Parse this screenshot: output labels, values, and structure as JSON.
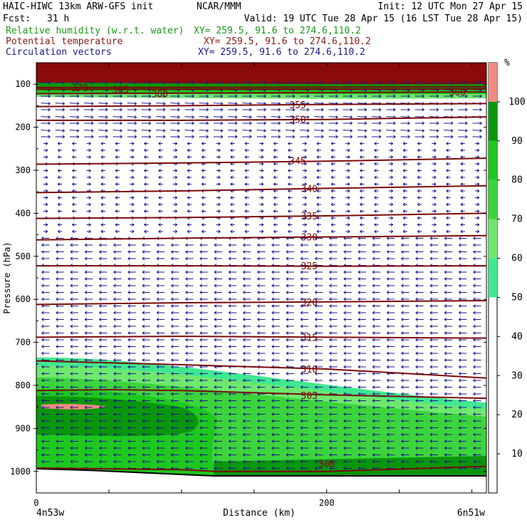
{
  "header": {
    "model_title": "HAIC-HIWC 13km ARW-GFS init",
    "org": "NCAR/MMM",
    "init": "Init: 12 UTC Mon 27 Apr 15",
    "fcst_label": "Fcst:",
    "fcst_value": "31 h",
    "valid": "Valid: 19 UTC Tue 28 Apr 15 (16 LST Tue 28 Apr 15)"
  },
  "fields": [
    {
      "name": "Relative humidity (w.r.t. water)",
      "xy": "XY= 259.5, 91.6 to 274.6,110.2",
      "color": "#1a9a1a"
    },
    {
      "name": "Potential temperature",
      "xy": "XY= 259.5, 91.6 to 274.6,110.2",
      "color": "#8b1a1a"
    },
    {
      "name": "Circulation vectors",
      "xy": "XY= 259.5, 91.6 to 274.6,110.2",
      "color": "#1a1a8b"
    }
  ],
  "chart_data": {
    "type": "cross-section",
    "xlabel": "Distance (km)",
    "ylabel": "Pressure (hPa)",
    "xlim": [
      0,
      310
    ],
    "ylim": [
      1050,
      50
    ],
    "xticks": [
      0,
      200
    ],
    "xtick_labels": [
      "0",
      "200"
    ],
    "x_endpoints": [
      "4n53w",
      "6n51w"
    ],
    "yticks": [
      100,
      200,
      300,
      400,
      500,
      600,
      700,
      800,
      900,
      1000
    ],
    "yticks_labels": [
      "100",
      "200",
      "300",
      "400",
      "500",
      "600",
      "700",
      "800",
      "900",
      "1000"
    ],
    "colorbar": {
      "unit": "%",
      "levels": [
        10,
        20,
        30,
        40,
        50,
        60,
        70,
        80,
        90,
        100
      ],
      "level_labels": [
        "10",
        "20",
        "30",
        "40",
        "50",
        "60",
        "70",
        "80",
        "90",
        "100"
      ],
      "bands": [
        {
          "from": 50,
          "to": 60,
          "color": "#40e890"
        },
        {
          "from": 60,
          "to": 70,
          "color": "#6ee86e"
        },
        {
          "from": 70,
          "to": 80,
          "color": "#3cd43c"
        },
        {
          "from": 80,
          "to": 90,
          "color": "#1ec81e"
        },
        {
          "from": 90,
          "to": 100,
          "color": "#0a960a"
        },
        {
          "from": 100,
          "to": 110,
          "color": "#f28c82"
        }
      ]
    },
    "theta_contours": [
      {
        "label": "370",
        "points": [
          [
            0,
            108
          ],
          [
            310,
            106
          ]
        ],
        "label_at": [
          30,
          108
        ]
      },
      {
        "label": "365",
        "points": [
          [
            0,
            112
          ],
          [
            310,
            111
          ]
        ],
        "label_at": [
          58,
          112
        ]
      },
      {
        "label": "360",
        "points": [
          [
            0,
            122
          ],
          [
            310,
            118
          ]
        ],
        "label_at": [
          85,
          122
        ]
      },
      {
        "label": "360",
        "points": [
          [
            0,
            122
          ],
          [
            310,
            118
          ]
        ],
        "label_at": [
          290,
          118
        ]
      },
      {
        "label": "355",
        "points": [
          [
            0,
            152
          ],
          [
            100,
            150
          ],
          [
            200,
            147
          ],
          [
            310,
            145
          ]
        ],
        "label_at": [
          180,
          148
        ]
      },
      {
        "label": "350",
        "points": [
          [
            0,
            184
          ],
          [
            100,
            184
          ],
          [
            200,
            182
          ],
          [
            310,
            176
          ]
        ],
        "label_at": [
          180,
          182
        ]
      },
      {
        "label": "345",
        "points": [
          [
            0,
            286
          ],
          [
            100,
            283
          ],
          [
            200,
            279
          ],
          [
            310,
            272
          ]
        ],
        "label_at": [
          180,
          278
        ]
      },
      {
        "label": "340",
        "points": [
          [
            0,
            352
          ],
          [
            100,
            348
          ],
          [
            200,
            342
          ],
          [
            310,
            336
          ]
        ],
        "label_at": [
          188,
          342
        ]
      },
      {
        "label": "335",
        "points": [
          [
            0,
            412
          ],
          [
            100,
            410
          ],
          [
            200,
            406
          ],
          [
            310,
            400
          ]
        ],
        "label_at": [
          188,
          406
        ]
      },
      {
        "label": "330",
        "points": [
          [
            0,
            462
          ],
          [
            100,
            458
          ],
          [
            200,
            455
          ],
          [
            310,
            452
          ]
        ],
        "label_at": [
          188,
          455
        ]
      },
      {
        "label": "325",
        "points": [
          [
            0,
            522
          ],
          [
            100,
            522
          ],
          [
            200,
            523
          ],
          [
            310,
            522
          ]
        ],
        "label_at": [
          188,
          522
        ]
      },
      {
        "label": "320",
        "points": [
          [
            0,
            612
          ],
          [
            100,
            608
          ],
          [
            200,
            606
          ],
          [
            310,
            603
          ]
        ],
        "label_at": [
          188,
          606
        ]
      },
      {
        "label": "315",
        "points": [
          [
            0,
            688
          ],
          [
            100,
            686
          ],
          [
            200,
            688
          ],
          [
            310,
            690
          ]
        ],
        "label_at": [
          188,
          688
        ]
      },
      {
        "label": "310",
        "points": [
          [
            0,
            743
          ],
          [
            100,
            752
          ],
          [
            200,
            762
          ],
          [
            310,
            783
          ]
        ],
        "label_at": [
          188,
          762
        ]
      },
      {
        "label": "305",
        "points": [
          [
            0,
            812
          ],
          [
            50,
            810
          ],
          [
            100,
            812
          ],
          [
            200,
            822
          ],
          [
            310,
            830
          ]
        ],
        "label_at": [
          188,
          823
        ]
      },
      {
        "label": "300",
        "points": [
          [
            0,
            992
          ],
          [
            100,
            996
          ],
          [
            124,
            1000
          ],
          [
            200,
            1000
          ],
          [
            310,
            988
          ]
        ],
        "label_at": [
          200,
          982
        ]
      }
    ]
  }
}
